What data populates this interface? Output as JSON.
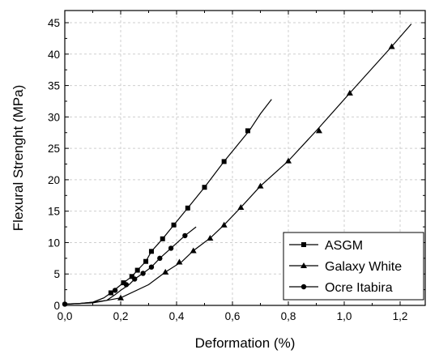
{
  "chart_data": {
    "type": "line",
    "xlabel": "Deformation (%)",
    "ylabel": "Flexural Strenght (MPa)",
    "xlim": [
      0.0,
      1.3
    ],
    "ylim": [
      0,
      46
    ],
    "x_ticks": [
      "0,0",
      "0,2",
      "0,4",
      "0,6",
      "0,8",
      "1,0",
      "1,2"
    ],
    "y_ticks": [
      "0",
      "5",
      "10",
      "15",
      "20",
      "25",
      "30",
      "35",
      "40",
      "45"
    ],
    "grid": true,
    "legend_position": "bottom-right",
    "series": [
      {
        "name": "ASGM",
        "marker": "square",
        "line_points": [
          [
            0,
            0.2
          ],
          [
            0.05,
            0.3
          ],
          [
            0.1,
            0.5
          ],
          [
            0.14,
            1.2
          ],
          [
            0.165,
            2
          ],
          [
            0.19,
            2.9
          ],
          [
            0.21,
            3.6
          ],
          [
            0.24,
            4.6
          ],
          [
            0.26,
            5.6
          ],
          [
            0.29,
            7
          ],
          [
            0.31,
            8.6
          ],
          [
            0.35,
            10.6
          ],
          [
            0.39,
            12.8
          ],
          [
            0.44,
            15.5
          ],
          [
            0.5,
            18.8
          ],
          [
            0.57,
            22.9
          ],
          [
            0.66,
            27.8
          ],
          [
            0.7,
            30.5
          ],
          [
            0.74,
            32.8
          ]
        ],
        "markers": [
          [
            0.165,
            2
          ],
          [
            0.21,
            3.6
          ],
          [
            0.24,
            4.6
          ],
          [
            0.26,
            5.6
          ],
          [
            0.29,
            7
          ],
          [
            0.31,
            8.6
          ],
          [
            0.35,
            10.6
          ],
          [
            0.39,
            12.8
          ],
          [
            0.44,
            15.5
          ],
          [
            0.5,
            18.8
          ],
          [
            0.57,
            22.9
          ],
          [
            0.655,
            27.8
          ]
        ]
      },
      {
        "name": "Galaxy White",
        "marker": "triangle",
        "line_points": [
          [
            0,
            0.2
          ],
          [
            0.05,
            0.3
          ],
          [
            0.1,
            0.5
          ],
          [
            0.15,
            0.8
          ],
          [
            0.2,
            1.2
          ],
          [
            0.3,
            3.3
          ],
          [
            0.36,
            5.3
          ],
          [
            0.42,
            7
          ],
          [
            0.46,
            8.7
          ],
          [
            0.52,
            10.7
          ],
          [
            0.57,
            12.8
          ],
          [
            0.63,
            15.6
          ],
          [
            0.7,
            19
          ],
          [
            0.8,
            23
          ],
          [
            0.9,
            27.8
          ],
          [
            1.02,
            33.8
          ],
          [
            1.17,
            41.2
          ],
          [
            1.24,
            44.8
          ]
        ],
        "markers": [
          [
            0.2,
            1.2
          ],
          [
            0.36,
            5.3
          ],
          [
            0.41,
            6.9
          ],
          [
            0.46,
            8.7
          ],
          [
            0.52,
            10.7
          ],
          [
            0.57,
            12.8
          ],
          [
            0.63,
            15.6
          ],
          [
            0.7,
            19
          ],
          [
            0.8,
            23
          ],
          [
            0.91,
            27.8
          ],
          [
            1.02,
            33.8
          ],
          [
            1.17,
            41.2
          ]
        ]
      },
      {
        "name": "Ocre Itabira",
        "marker": "circle",
        "line_points": [
          [
            0,
            0.2
          ],
          [
            0.05,
            0.3
          ],
          [
            0.1,
            0.4
          ],
          [
            0.15,
            0.8
          ],
          [
            0.18,
            1.7
          ],
          [
            0.2,
            2.4
          ],
          [
            0.23,
            3.3
          ],
          [
            0.25,
            4.2
          ],
          [
            0.28,
            5.1
          ],
          [
            0.31,
            6.1
          ],
          [
            0.34,
            7.5
          ],
          [
            0.38,
            9.1
          ],
          [
            0.43,
            11.1
          ],
          [
            0.47,
            12.5
          ]
        ],
        "markers": [
          [
            0,
            0.2
          ],
          [
            0.18,
            2.4
          ],
          [
            0.22,
            3.3
          ],
          [
            0.25,
            4.2
          ],
          [
            0.28,
            5.1
          ],
          [
            0.31,
            6.1
          ],
          [
            0.34,
            7.5
          ],
          [
            0.38,
            9.1
          ],
          [
            0.43,
            11.1
          ]
        ]
      }
    ]
  }
}
